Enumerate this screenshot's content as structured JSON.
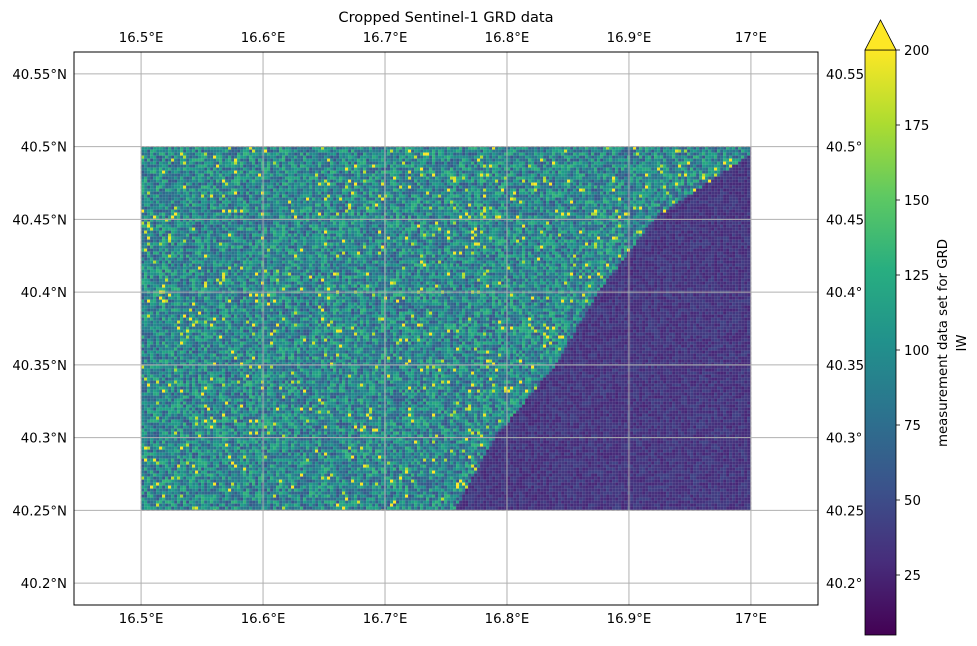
{
  "chart_data": {
    "type": "heatmap",
    "title": "Cropped Sentinel-1 GRD data",
    "x_ticks": [
      {
        "value": 16.5,
        "label": "16.5°E"
      },
      {
        "value": 16.6,
        "label": "16.6°E"
      },
      {
        "value": 16.7,
        "label": "16.7°E"
      },
      {
        "value": 16.8,
        "label": "16.8°E"
      },
      {
        "value": 16.9,
        "label": "16.9°E"
      },
      {
        "value": 17.0,
        "label": "17°E"
      }
    ],
    "y_ticks": [
      {
        "value": 40.2,
        "label": "40.2°N"
      },
      {
        "value": 40.25,
        "label": "40.25°N"
      },
      {
        "value": 40.3,
        "label": "40.3°N"
      },
      {
        "value": 40.35,
        "label": "40.35°N"
      },
      {
        "value": 40.4,
        "label": "40.4°N"
      },
      {
        "value": 40.45,
        "label": "40.45°N"
      },
      {
        "value": 40.5,
        "label": "40.5°N"
      },
      {
        "value": 40.55,
        "label": "40.55°N"
      }
    ],
    "y_ticks_right": [
      {
        "value": 40.2,
        "label": "40.2°"
      },
      {
        "value": 40.25,
        "label": "40.25"
      },
      {
        "value": 40.3,
        "label": "40.3°"
      },
      {
        "value": 40.35,
        "label": "40.35"
      },
      {
        "value": 40.4,
        "label": "40.4°"
      },
      {
        "value": 40.45,
        "label": "40.45"
      },
      {
        "value": 40.5,
        "label": "40.5°"
      },
      {
        "value": 40.55,
        "label": "40.55"
      }
    ],
    "xlim": [
      16.445,
      17.055
    ],
    "ylim": [
      40.185,
      40.565
    ],
    "data_extent": {
      "lon": [
        16.5,
        17.0
      ],
      "lat": [
        40.25,
        40.5
      ]
    },
    "coastline": [
      [
        16.757,
        40.25
      ],
      [
        16.79,
        40.3
      ],
      [
        16.84,
        40.35
      ],
      [
        16.875,
        40.4
      ],
      [
        16.92,
        40.45
      ],
      [
        17.0,
        40.495
      ]
    ],
    "land_mean_value": 95,
    "sea_mean_value": 35,
    "colorbar": {
      "label_line1": "measurement data set for GRD",
      "label_line2": "IW",
      "min": 5,
      "max": 200,
      "extend": "max",
      "ticks": [
        25,
        50,
        75,
        100,
        125,
        150,
        175,
        200
      ],
      "colormap": "viridis"
    },
    "grid": true
  }
}
